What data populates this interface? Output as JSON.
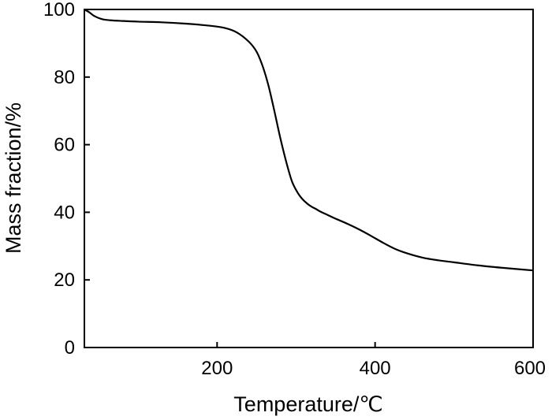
{
  "chart_data": {
    "type": "line",
    "xlabel": "Temperature/℃",
    "ylabel": "Mass fraction/%",
    "xlim": [
      32,
      600
    ],
    "ylim": [
      0,
      100
    ],
    "xticks": [
      200,
      400,
      600
    ],
    "yticks": [
      0,
      20,
      40,
      60,
      80,
      100
    ],
    "grid": false,
    "line_color": "#000000",
    "series": [
      {
        "x": [
          32,
          38,
          45,
          55,
          65,
          80,
          100,
          130,
          160,
          190,
          210,
          225,
          240,
          250,
          258,
          265,
          272,
          280,
          288,
          295,
          302,
          308,
          315,
          320,
          325,
          330,
          340,
          350,
          365,
          380,
          395,
          410,
          425,
          440,
          460,
          480,
          500,
          530,
          560,
          600
        ],
        "y": [
          100,
          99.2,
          98.0,
          97.1,
          96.8,
          96.6,
          96.4,
          96.2,
          95.8,
          95.2,
          94.5,
          93.2,
          90.5,
          87.5,
          83.0,
          77.5,
          70.5,
          62.0,
          54.5,
          49.0,
          45.8,
          43.9,
          42.4,
          41.6,
          41.0,
          40.3,
          39.2,
          38.1,
          36.6,
          34.9,
          33.0,
          31.0,
          29.2,
          27.9,
          26.6,
          25.8,
          25.2,
          24.3,
          23.6,
          22.8
        ]
      }
    ]
  }
}
